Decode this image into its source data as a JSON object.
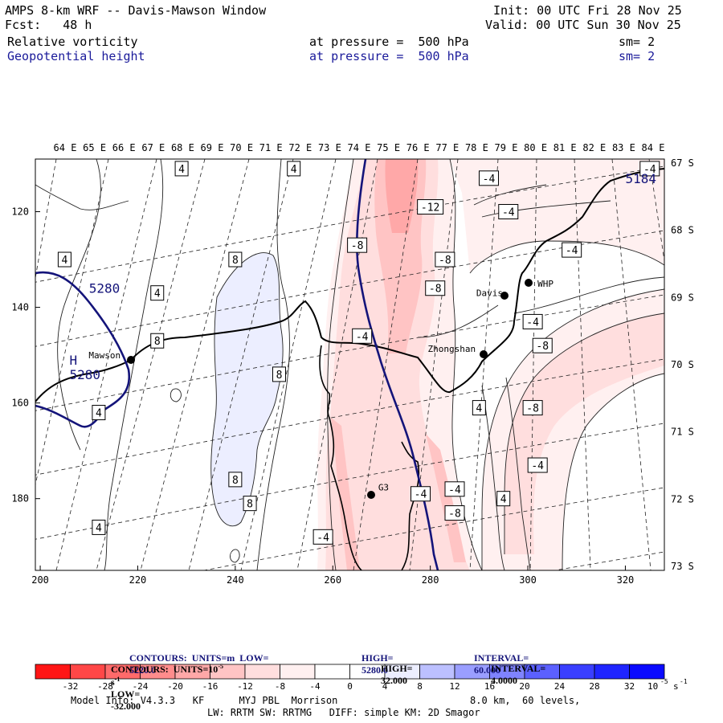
{
  "header": {
    "title": "AMPS 8-km WRF -- Davis-Mawson Window",
    "init": "Init: 00 UTC Fri 28 Nov 25",
    "fcst": "Fcst:   48 h",
    "valid": "Valid: 00 UTC Sun 30 Nov 25",
    "field1": "Relative vorticity",
    "field1_level": "at pressure =  500 hPa",
    "field1_sm": "sm= 2",
    "field2": "Geopotential height",
    "field2_level": "at pressure =  500 hPa",
    "field2_sm": "sm= 2"
  },
  "colors": {
    "red_scale": [
      "#ff1515",
      "#ff4747",
      "#ff6a6a",
      "#ff8c8c",
      "#ffa8a8",
      "#ffc4c4",
      "#ffdede",
      "#fff0f0"
    ],
    "blue_scale": [
      "#eceeff",
      "#bcc0ff",
      "#9a9eff",
      "#7f83ff",
      "#5b60ff",
      "#3a3fff",
      "#1f25ff",
      "#0a0aff"
    ],
    "height_contour": "#14147a"
  },
  "chart_data": {
    "type": "contour_map",
    "x_axis": {
      "ticks": [
        200,
        220,
        240,
        260,
        280,
        300,
        320
      ],
      "range": [
        199,
        328
      ]
    },
    "y_axis": {
      "ticks": [
        120,
        140,
        160,
        180
      ],
      "range": [
        109,
        195
      ],
      "inverted": true
    },
    "longitude_labels": [
      "64 E",
      "65 E",
      "66 E",
      "67 E",
      "68 E",
      "69 E",
      "70 E",
      "71 E",
      "72 E",
      "73 E",
      "74 E",
      "75 E",
      "76 E",
      "77 E",
      "78 E",
      "79 E",
      "80 E",
      "81 E",
      "82 E",
      "83 E",
      "84 E"
    ],
    "latitude_labels": [
      "67 S",
      "68 S",
      "69 S",
      "70 S",
      "71 S",
      "72 S",
      "73 S"
    ],
    "stations": [
      {
        "name": "Mawson",
        "x": 219,
        "y": 151
      },
      {
        "name": "Davis",
        "x": 297,
        "y": 138
      },
      {
        "name": "WHP",
        "x": 301,
        "y": 135
      },
      {
        "name": "Zhongshan",
        "x": 292,
        "y": 150
      },
      {
        "name": "G3",
        "x": 268,
        "y": 179
      }
    ],
    "height_labels": [
      {
        "text": "5280",
        "x": 210,
        "y": 137
      },
      {
        "text": "5280",
        "x": 206,
        "y": 155
      },
      {
        "text": "H",
        "x": 206,
        "y": 152
      },
      {
        "text": "5184",
        "x": 320,
        "y": 114
      }
    ],
    "vorticity_labels": [
      {
        "v": "4",
        "x": 229,
        "y": 111
      },
      {
        "v": "4",
        "x": 252,
        "y": 111
      },
      {
        "v": "4",
        "x": 205,
        "y": 130
      },
      {
        "v": "4",
        "x": 224,
        "y": 137
      },
      {
        "v": "8",
        "x": 240,
        "y": 130
      },
      {
        "v": "8",
        "x": 224,
        "y": 147
      },
      {
        "v": "8",
        "x": 249,
        "y": 154
      },
      {
        "v": "4",
        "x": 212,
        "y": 162
      },
      {
        "v": "8",
        "x": 240,
        "y": 176
      },
      {
        "v": "8",
        "x": 243,
        "y": 181
      },
      {
        "v": "4",
        "x": 212,
        "y": 186
      },
      {
        "v": "-4",
        "x": 258,
        "y": 188
      },
      {
        "v": "-8",
        "x": 265,
        "y": 127
      },
      {
        "v": "-12",
        "x": 280,
        "y": 119
      },
      {
        "v": "-8",
        "x": 283,
        "y": 130
      },
      {
        "v": "-8",
        "x": 281,
        "y": 136
      },
      {
        "v": "-4",
        "x": 266,
        "y": 146
      },
      {
        "v": "-4",
        "x": 292,
        "y": 113
      },
      {
        "v": "-4",
        "x": 296,
        "y": 120
      },
      {
        "v": "-4",
        "x": 309,
        "y": 128
      },
      {
        "v": "-4",
        "x": 301,
        "y": 143
      },
      {
        "v": "-8",
        "x": 303,
        "y": 148
      },
      {
        "v": "-8",
        "x": 301,
        "y": 161
      },
      {
        "v": "-4",
        "x": 302,
        "y": 173
      },
      {
        "v": "4",
        "x": 290,
        "y": 161
      },
      {
        "v": "4",
        "x": 295,
        "y": 180
      },
      {
        "v": "-4",
        "x": 278,
        "y": 179
      },
      {
        "v": "-4",
        "x": 285,
        "y": 178
      },
      {
        "v": "-8",
        "x": 285,
        "y": 183
      },
      {
        "v": "-4",
        "x": 325,
        "y": 111
      }
    ],
    "contours_height": {
      "units": "m",
      "low": "5220.0",
      "high": "5280.0",
      "interval": "60.000"
    },
    "contours_vorticity": {
      "units": "10",
      "units_exp": "-5",
      "units_tail": "s",
      "units_tail_exp": "-1",
      "low": "-32.000",
      "high": "32.000",
      "interval": "4.0000"
    },
    "colorbar": {
      "labels": [
        "-32",
        "-28",
        "-24",
        "-20",
        "-16",
        "-12",
        "-8",
        "-4",
        "0",
        "4",
        "8",
        "12",
        "16",
        "20",
        "24",
        "28",
        "32"
      ],
      "unit_label": "10",
      "unit_exp": "-5",
      "unit_tail": "s",
      "unit_tail_exp": "-1"
    }
  },
  "footer": {
    "contours1_prefix": "CONTOURS:  UNITS=m  LOW=",
    "contours1_low": "5220.0",
    "contours1_high_prefix": "HIGH=",
    "contours1_high": "5280.0",
    "contours1_int_prefix": "INTERVAL=",
    "contours1_int": "60.000",
    "contours2_prefix": "CONTOURS:  UNITS=10",
    "contours2_low_prefix": "LOW=",
    "contours2_low": "-32.000",
    "contours2_high_prefix": "HIGH=",
    "contours2_high": "32.000",
    "contours2_int_prefix": "INTERVAL=",
    "contours2_int": "4.0000",
    "model_info": "Model Info: V4.3.3   KF      MYJ PBL  Morrison",
    "grid_info": "8.0 km,  60 levels,",
    "physics_info": "LW: RRTM SW: RRTMG   DIFF: simple KM: 2D Smagor"
  }
}
